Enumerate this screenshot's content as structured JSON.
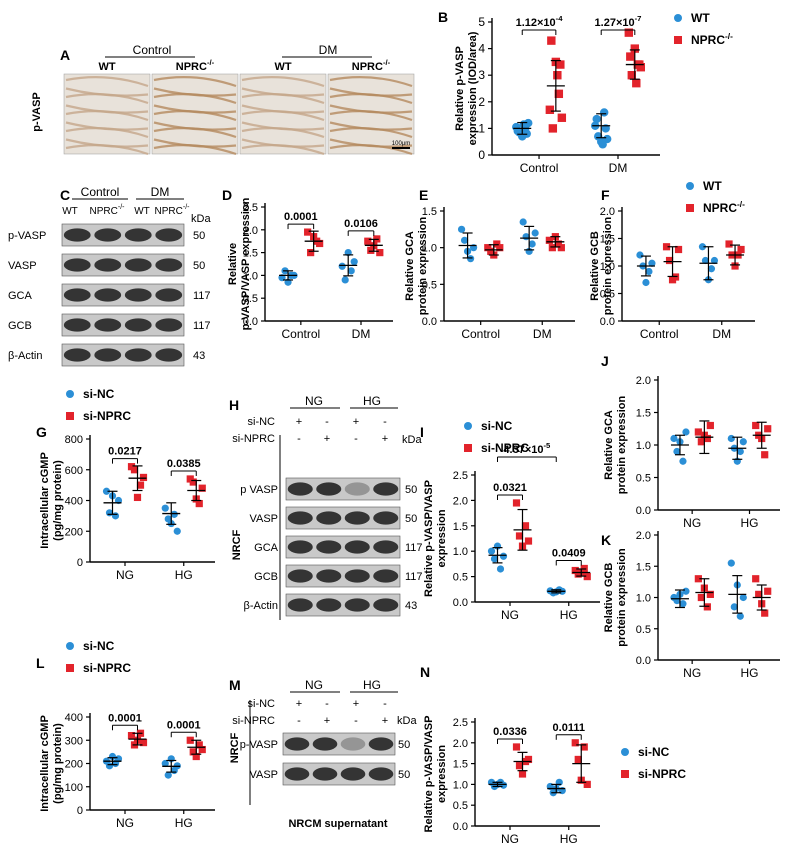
{
  "colors": {
    "blue": "#2b8fd6",
    "red": "#e2232b",
    "black": "#000000",
    "tissue_bg": "#e8e2da",
    "blot_bg": "#c9c9c9",
    "band": "#1a1a1a"
  },
  "panelA": {
    "letter": "A",
    "row_label": "p-VASP",
    "group_labels": [
      "Control",
      "DM"
    ],
    "col_labels": [
      "WT",
      "NPRC",
      "WT",
      "NPRC"
    ],
    "col_sups": [
      "",
      "-/-",
      "",
      "-/-"
    ],
    "scale_bar": "100μm"
  },
  "panelB": {
    "letter": "B",
    "legend_wt": "WT",
    "legend_nprc": "NPRC",
    "legend_nprc_sup": "-/-"
  },
  "panelC": {
    "letter": "C",
    "group_labels": [
      "Control",
      "DM"
    ],
    "col_labels": [
      "WT",
      "NPRC",
      "WT",
      "NPRC"
    ],
    "col_sups": [
      "",
      "-/-",
      "",
      "-/-"
    ],
    "kda": "kDa",
    "rows": [
      {
        "label": "p-VASP",
        "kda": "50"
      },
      {
        "label": "VASP",
        "kda": "50"
      },
      {
        "label": "GCA",
        "kda": "117"
      },
      {
        "label": "GCB",
        "kda": "117"
      },
      {
        "label": "β-Actin",
        "kda": "43"
      }
    ]
  },
  "panelF": {
    "legend_wt": "WT",
    "legend_nprc": "NPRC",
    "legend_nprc_sup": "-/-"
  },
  "panelG": {
    "legend_a": "si-NC",
    "legend_b": "si-NPRC"
  },
  "panelH": {
    "letter": "H",
    "group_labels": [
      "NG",
      "HG"
    ],
    "treat_labels": [
      "si-NC",
      "si-NPRC"
    ],
    "signs_sinc": [
      "+",
      "-",
      "+",
      "-"
    ],
    "signs_sinprc": [
      "-",
      "+",
      "-",
      "+"
    ],
    "kda": "kDa",
    "side": "NRCF",
    "rows": [
      {
        "label": "p VASP",
        "kda": "50"
      },
      {
        "label": "VASP",
        "kda": "50"
      },
      {
        "label": "GCA",
        "kda": "117"
      },
      {
        "label": "GCB",
        "kda": "117"
      },
      {
        "label": "β-Actin",
        "kda": "43"
      }
    ]
  },
  "panelI": {
    "legend_a": "si-NC",
    "legend_b": "si-NPRC"
  },
  "panelL": {
    "legend_a": "si-NC",
    "legend_b": "si-NPRC"
  },
  "panelM": {
    "letter": "M",
    "group_labels": [
      "NG",
      "HG"
    ],
    "treat_labels": [
      "si-NC",
      "si-NPRC"
    ],
    "signs_sinc": [
      "+",
      "-",
      "+",
      "-"
    ],
    "signs_sinprc": [
      "-",
      "+",
      "-",
      "+"
    ],
    "kda": "kDa",
    "side": "NRCF",
    "rows": [
      {
        "label": "p-VASP",
        "kda": "50"
      },
      {
        "label": "VASP",
        "kda": "50"
      }
    ],
    "caption": "NRCM supernatant"
  },
  "panelN": {
    "legend_a": "si-NC",
    "legend_b": "si-NPRC"
  },
  "chart_data": [
    {
      "id": "B",
      "letter": "B",
      "type": "scatter",
      "ylabel_lines": [
        "Relative p-VASP",
        "expression (IOD/area)"
      ],
      "categories": [
        "Control",
        "DM"
      ],
      "ylim": [
        0,
        5
      ],
      "yticks": [
        "0",
        "1",
        "2",
        "3",
        "4",
        "5"
      ],
      "series": [
        {
          "name": "WT",
          "color": "blue",
          "values": [
            [
              1.05,
              0.85,
              0.7,
              1.0,
              1.2,
              0.9,
              1.15,
              0.8
            ],
            [
              1.1,
              0.7,
              0.5,
              1.6,
              0.6,
              1.35,
              0.4,
              1.0
            ]
          ]
        },
        {
          "name": "NPRC-/-",
          "color": "red",
          "values": [
            [
              1.7,
              1.0,
              3.5,
              2.3,
              1.4,
              4.3,
              3.0,
              3.4
            ],
            [
              4.6,
              3.0,
              4.0,
              3.4,
              3.3,
              3.7,
              2.7,
              3.4
            ]
          ]
        }
      ],
      "mean": [
        [
          1.0,
          2.6
        ],
        [
          1.1,
          3.4
        ]
      ],
      "sd": [
        [
          0.22,
          0.95
        ],
        [
          0.45,
          0.55
        ]
      ],
      "pvals": [
        {
          "label": "1.12×10",
          "sup": "-4"
        },
        {
          "label": "1.27×10",
          "sup": "-7"
        }
      ]
    },
    {
      "id": "D",
      "letter": "D",
      "type": "scatter",
      "ylabel_lines": [
        "Relative",
        "p-VASP/VASP expression"
      ],
      "categories": [
        "Control",
        "DM"
      ],
      "ylim": [
        0,
        2.5
      ],
      "yticks": [
        "0.0",
        "0.5",
        "1.0",
        "1.5",
        "2.0",
        "2.5"
      ],
      "series": [
        {
          "name": "WT",
          "color": "blue",
          "values": [
            [
              0.95,
              1.1,
              0.85,
              1.0,
              1.0
            ],
            [
              1.2,
              0.9,
              1.5,
              1.1,
              1.3
            ]
          ]
        },
        {
          "name": "NPRC-/-",
          "color": "red",
          "values": [
            [
              1.95,
              1.5,
              1.85,
              1.75,
              1.7
            ],
            [
              1.75,
              1.55,
              1.65,
              1.8,
              1.5
            ]
          ]
        }
      ],
      "mean": [
        [
          1.0,
          1.75
        ],
        [
          1.22,
          1.66
        ]
      ],
      "sd": [
        [
          0.1,
          0.22
        ],
        [
          0.23,
          0.13
        ]
      ],
      "pvals": [
        {
          "label": "0.0001",
          "sup": ""
        },
        {
          "label": "0.0106",
          "sup": ""
        }
      ]
    },
    {
      "id": "E",
      "letter": "E",
      "type": "scatter",
      "ylabel_lines": [
        "Relative GCA",
        "protein expression"
      ],
      "categories": [
        "Control",
        "DM"
      ],
      "ylim": [
        0,
        1.5
      ],
      "yticks": [
        "0.0",
        "0.5",
        "1.0",
        "1.5"
      ],
      "series": [
        {
          "name": "WT",
          "color": "blue",
          "values": [
            [
              1.25,
              1.1,
              0.95,
              0.85,
              1.0
            ],
            [
              1.35,
              1.15,
              0.95,
              1.05,
              1.2
            ]
          ]
        },
        {
          "name": "NPRC-/-",
          "color": "red",
          "values": [
            [
              1.0,
              0.95,
              0.9,
              1.05,
              1.0
            ],
            [
              1.1,
              1.0,
              1.15,
              1.05,
              1.0
            ]
          ]
        }
      ],
      "mean": [
        [
          1.03,
          0.97
        ],
        [
          1.13,
          1.08
        ]
      ],
      "sd": [
        [
          0.17,
          0.07
        ],
        [
          0.16,
          0.07
        ]
      ],
      "pvals": []
    },
    {
      "id": "F",
      "letter": "F",
      "type": "scatter",
      "ylabel_lines": [
        "Relative GCB",
        "protein expression"
      ],
      "categories": [
        "Control",
        "DM"
      ],
      "ylim": [
        0,
        2.0
      ],
      "yticks": [
        "0.0",
        "0.5",
        "1.0",
        "1.5",
        "2.0"
      ],
      "series": [
        {
          "name": "WT",
          "color": "blue",
          "values": [
            [
              1.2,
              1.0,
              0.7,
              0.9,
              1.05
            ],
            [
              1.35,
              1.1,
              0.75,
              0.95,
              1.1
            ]
          ]
        },
        {
          "name": "NPRC-/-",
          "color": "red",
          "values": [
            [
              1.35,
              1.1,
              0.75,
              0.8,
              1.3
            ],
            [
              1.4,
              1.2,
              1.0,
              1.2,
              1.3
            ]
          ]
        }
      ],
      "mean": [
        [
          1.0,
          1.08
        ],
        [
          1.05,
          1.2
        ]
      ],
      "sd": [
        [
          0.18,
          0.27
        ],
        [
          0.3,
          0.18
        ]
      ],
      "pvals": []
    },
    {
      "id": "G",
      "letter": "G",
      "type": "scatter",
      "ylabel_lines": [
        "Intracellular cGMP",
        "(pg/mg protein)"
      ],
      "categories": [
        "NG",
        "HG"
      ],
      "ylim": [
        0,
        800
      ],
      "yticks": [
        "0",
        "200",
        "400",
        "600",
        "800"
      ],
      "series": [
        {
          "name": "si-NC",
          "color": "blue",
          "values": [
            [
              460,
              320,
              430,
              300,
              400
            ],
            [
              350,
              280,
              250,
              310,
              200
            ]
          ]
        },
        {
          "name": "si-NPRC",
          "color": "red",
          "values": [
            [
              620,
              600,
              420,
              500,
              550
            ],
            [
              540,
              520,
              410,
              380,
              480
            ]
          ]
        }
      ],
      "mean": [
        [
          385,
          545
        ],
        [
          315,
          465
        ]
      ],
      "sd": [
        [
          75,
          80
        ],
        [
          70,
          65
        ]
      ],
      "pvals": [
        {
          "label": "0.0217",
          "sup": ""
        },
        {
          "label": "0.0385",
          "sup": ""
        }
      ]
    },
    {
      "id": "I",
      "letter": "I",
      "type": "scatter",
      "ylabel_lines": [
        "Relative p-VASP/VASP",
        "expression"
      ],
      "categories": [
        "NG",
        "HG"
      ],
      "ylim": [
        0,
        2.5
      ],
      "yticks": [
        "0.0",
        "0.5",
        "1.0",
        "1.5",
        "2.0",
        "2.5"
      ],
      "series": [
        {
          "name": "si-NC",
          "color": "blue",
          "values": [
            [
              1.0,
              0.85,
              1.1,
              0.65,
              0.9
            ],
            [
              0.22,
              0.18,
              0.2,
              0.24,
              0.21
            ]
          ]
        },
        {
          "name": "si-NPRC",
          "color": "red",
          "values": [
            [
              1.95,
              1.3,
              1.1,
              1.5,
              1.2
            ],
            [
              0.62,
              0.55,
              0.58,
              0.66,
              0.5
            ]
          ]
        }
      ],
      "mean": [
        [
          0.92,
          1.42
        ],
        [
          0.21,
          0.58
        ]
      ],
      "sd": [
        [
          0.15,
          0.4
        ],
        [
          0.03,
          0.07
        ]
      ],
      "pvals": [
        {
          "label": "0.0321",
          "sup": ""
        },
        {
          "label": "0.0409",
          "sup": ""
        },
        {
          "label": "4.37×10",
          "sup": "-5"
        }
      ]
    },
    {
      "id": "J",
      "letter": "J",
      "type": "scatter",
      "ylabel_lines": [
        "Relative GCA",
        "protein expression"
      ],
      "categories": [
        "NG",
        "HG"
      ],
      "ylim": [
        0,
        2.0
      ],
      "yticks": [
        "0.0",
        "0.5",
        "1.0",
        "1.5",
        "2.0"
      ],
      "series": [
        {
          "name": "si-NC",
          "color": "blue",
          "values": [
            [
              1.1,
              0.9,
              1.05,
              0.75,
              1.2
            ],
            [
              1.1,
              0.95,
              0.75,
              0.9,
              1.05
            ]
          ]
        },
        {
          "name": "si-NPRC",
          "color": "red",
          "values": [
            [
              1.2,
              1.05,
              1.15,
              1.1,
              1.3
            ],
            [
              1.3,
              1.15,
              1.1,
              0.85,
              1.25
            ]
          ]
        }
      ],
      "mean": [
        [
          1.0,
          1.12
        ],
        [
          0.95,
          1.15
        ]
      ],
      "sd": [
        [
          0.15,
          0.25
        ],
        [
          0.17,
          0.2
        ]
      ],
      "pvals": []
    },
    {
      "id": "K",
      "letter": "K",
      "type": "scatter",
      "ylabel_lines": [
        "Relative GCB",
        "protein expression"
      ],
      "categories": [
        "NG",
        "HG"
      ],
      "ylim": [
        0,
        2.0
      ],
      "yticks": [
        "0.0",
        "0.5",
        "1.0",
        "1.5",
        "2.0"
      ],
      "series": [
        {
          "name": "si-NC",
          "color": "blue",
          "values": [
            [
              1.0,
              0.95,
              1.05,
              0.9,
              1.1
            ],
            [
              1.55,
              0.85,
              1.2,
              0.7,
              1.0
            ]
          ]
        },
        {
          "name": "si-NPRC",
          "color": "red",
          "values": [
            [
              1.3,
              1.0,
              1.15,
              0.85,
              1.05
            ],
            [
              1.3,
              1.05,
              0.9,
              0.75,
              1.1
            ]
          ]
        }
      ],
      "mean": [
        [
          0.98,
          1.08
        ],
        [
          1.05,
          1.0
        ]
      ],
      "sd": [
        [
          0.14,
          0.22
        ],
        [
          0.3,
          0.2
        ]
      ],
      "pvals": []
    },
    {
      "id": "L",
      "letter": "L",
      "type": "scatter",
      "ylabel_lines": [
        "Intracellular cGMP",
        "(pg/mg protein)"
      ],
      "categories": [
        "NG",
        "HG"
      ],
      "ylim": [
        0,
        400
      ],
      "yticks": [
        "0",
        "100",
        "200",
        "300",
        "400"
      ],
      "series": [
        {
          "name": "si-NC",
          "color": "blue",
          "values": [
            [
              210,
              190,
              230,
              200,
              220
            ],
            [
              200,
              150,
              220,
              170,
              190
            ]
          ]
        },
        {
          "name": "si-NPRC",
          "color": "red",
          "values": [
            [
              320,
              280,
              300,
              330,
              290
            ],
            [
              300,
              250,
              230,
              280,
              260
            ]
          ]
        }
      ],
      "mean": [
        [
          210,
          305
        ],
        [
          188,
          270
        ]
      ],
      "sd": [
        [
          15,
          25
        ],
        [
          25,
          30
        ]
      ],
      "pvals": [
        {
          "label": "0.0001",
          "sup": ""
        },
        {
          "label": "0.0001",
          "sup": ""
        }
      ]
    },
    {
      "id": "N",
      "letter": "N",
      "type": "scatter",
      "ylabel_lines": [
        "Relative p-VASP/VASP",
        "expression"
      ],
      "categories": [
        "NG",
        "HG"
      ],
      "ylim": [
        0,
        2.5
      ],
      "yticks": [
        "0.0",
        "0.5",
        "1.0",
        "1.5",
        "2.0",
        "2.5"
      ],
      "series": [
        {
          "name": "si-NC",
          "color": "blue",
          "values": [
            [
              1.05,
              0.95,
              1.0,
              1.05,
              0.98
            ],
            [
              0.95,
              0.8,
              0.9,
              1.05,
              0.85
            ]
          ]
        },
        {
          "name": "si-NPRC",
          "color": "red",
          "values": [
            [
              1.9,
              1.45,
              1.25,
              1.55,
              1.6
            ],
            [
              2.0,
              1.6,
              1.1,
              1.9,
              1.0
            ]
          ]
        }
      ],
      "mean": [
        [
          1.0,
          1.55
        ],
        [
          0.9,
          1.5
        ]
      ],
      "sd": [
        [
          0.05,
          0.22
        ],
        [
          0.1,
          0.45
        ]
      ],
      "pvals": [
        {
          "label": "0.0336",
          "sup": ""
        },
        {
          "label": "0.0111",
          "sup": ""
        }
      ]
    }
  ]
}
